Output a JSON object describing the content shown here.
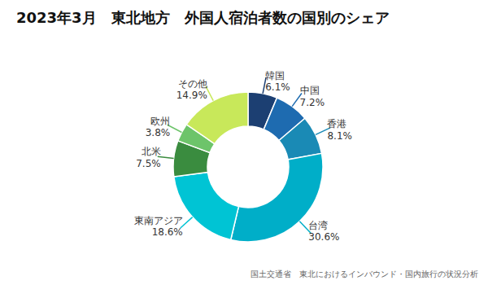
{
  "chart_data": {
    "type": "pie",
    "title": "2023年3月　東北地方　外国人宿泊者数の国別のシェア",
    "annotations": [
      "国土交通省　東北におけるインバウンド・国内旅行の状況分析"
    ],
    "categories": [
      "韓国",
      "中国",
      "香港",
      "台湾",
      "東南アジア",
      "北米",
      "欧州",
      "その他"
    ],
    "values": [
      6.1,
      7.2,
      8.1,
      30.6,
      18.6,
      7.5,
      3.8,
      14.9
    ],
    "value_labels": [
      "6.1%",
      "7.2%",
      "8.1%",
      "30.6%",
      "18.6%",
      "7.5%",
      "3.8%",
      "14.9%"
    ],
    "colors": [
      "#1c3f72",
      "#1e6bb0",
      "#1a8ab5",
      "#00aec8",
      "#00c4d4",
      "#3a8c3f",
      "#6dc46a",
      "#c8e85a"
    ],
    "data_labels": true
  }
}
